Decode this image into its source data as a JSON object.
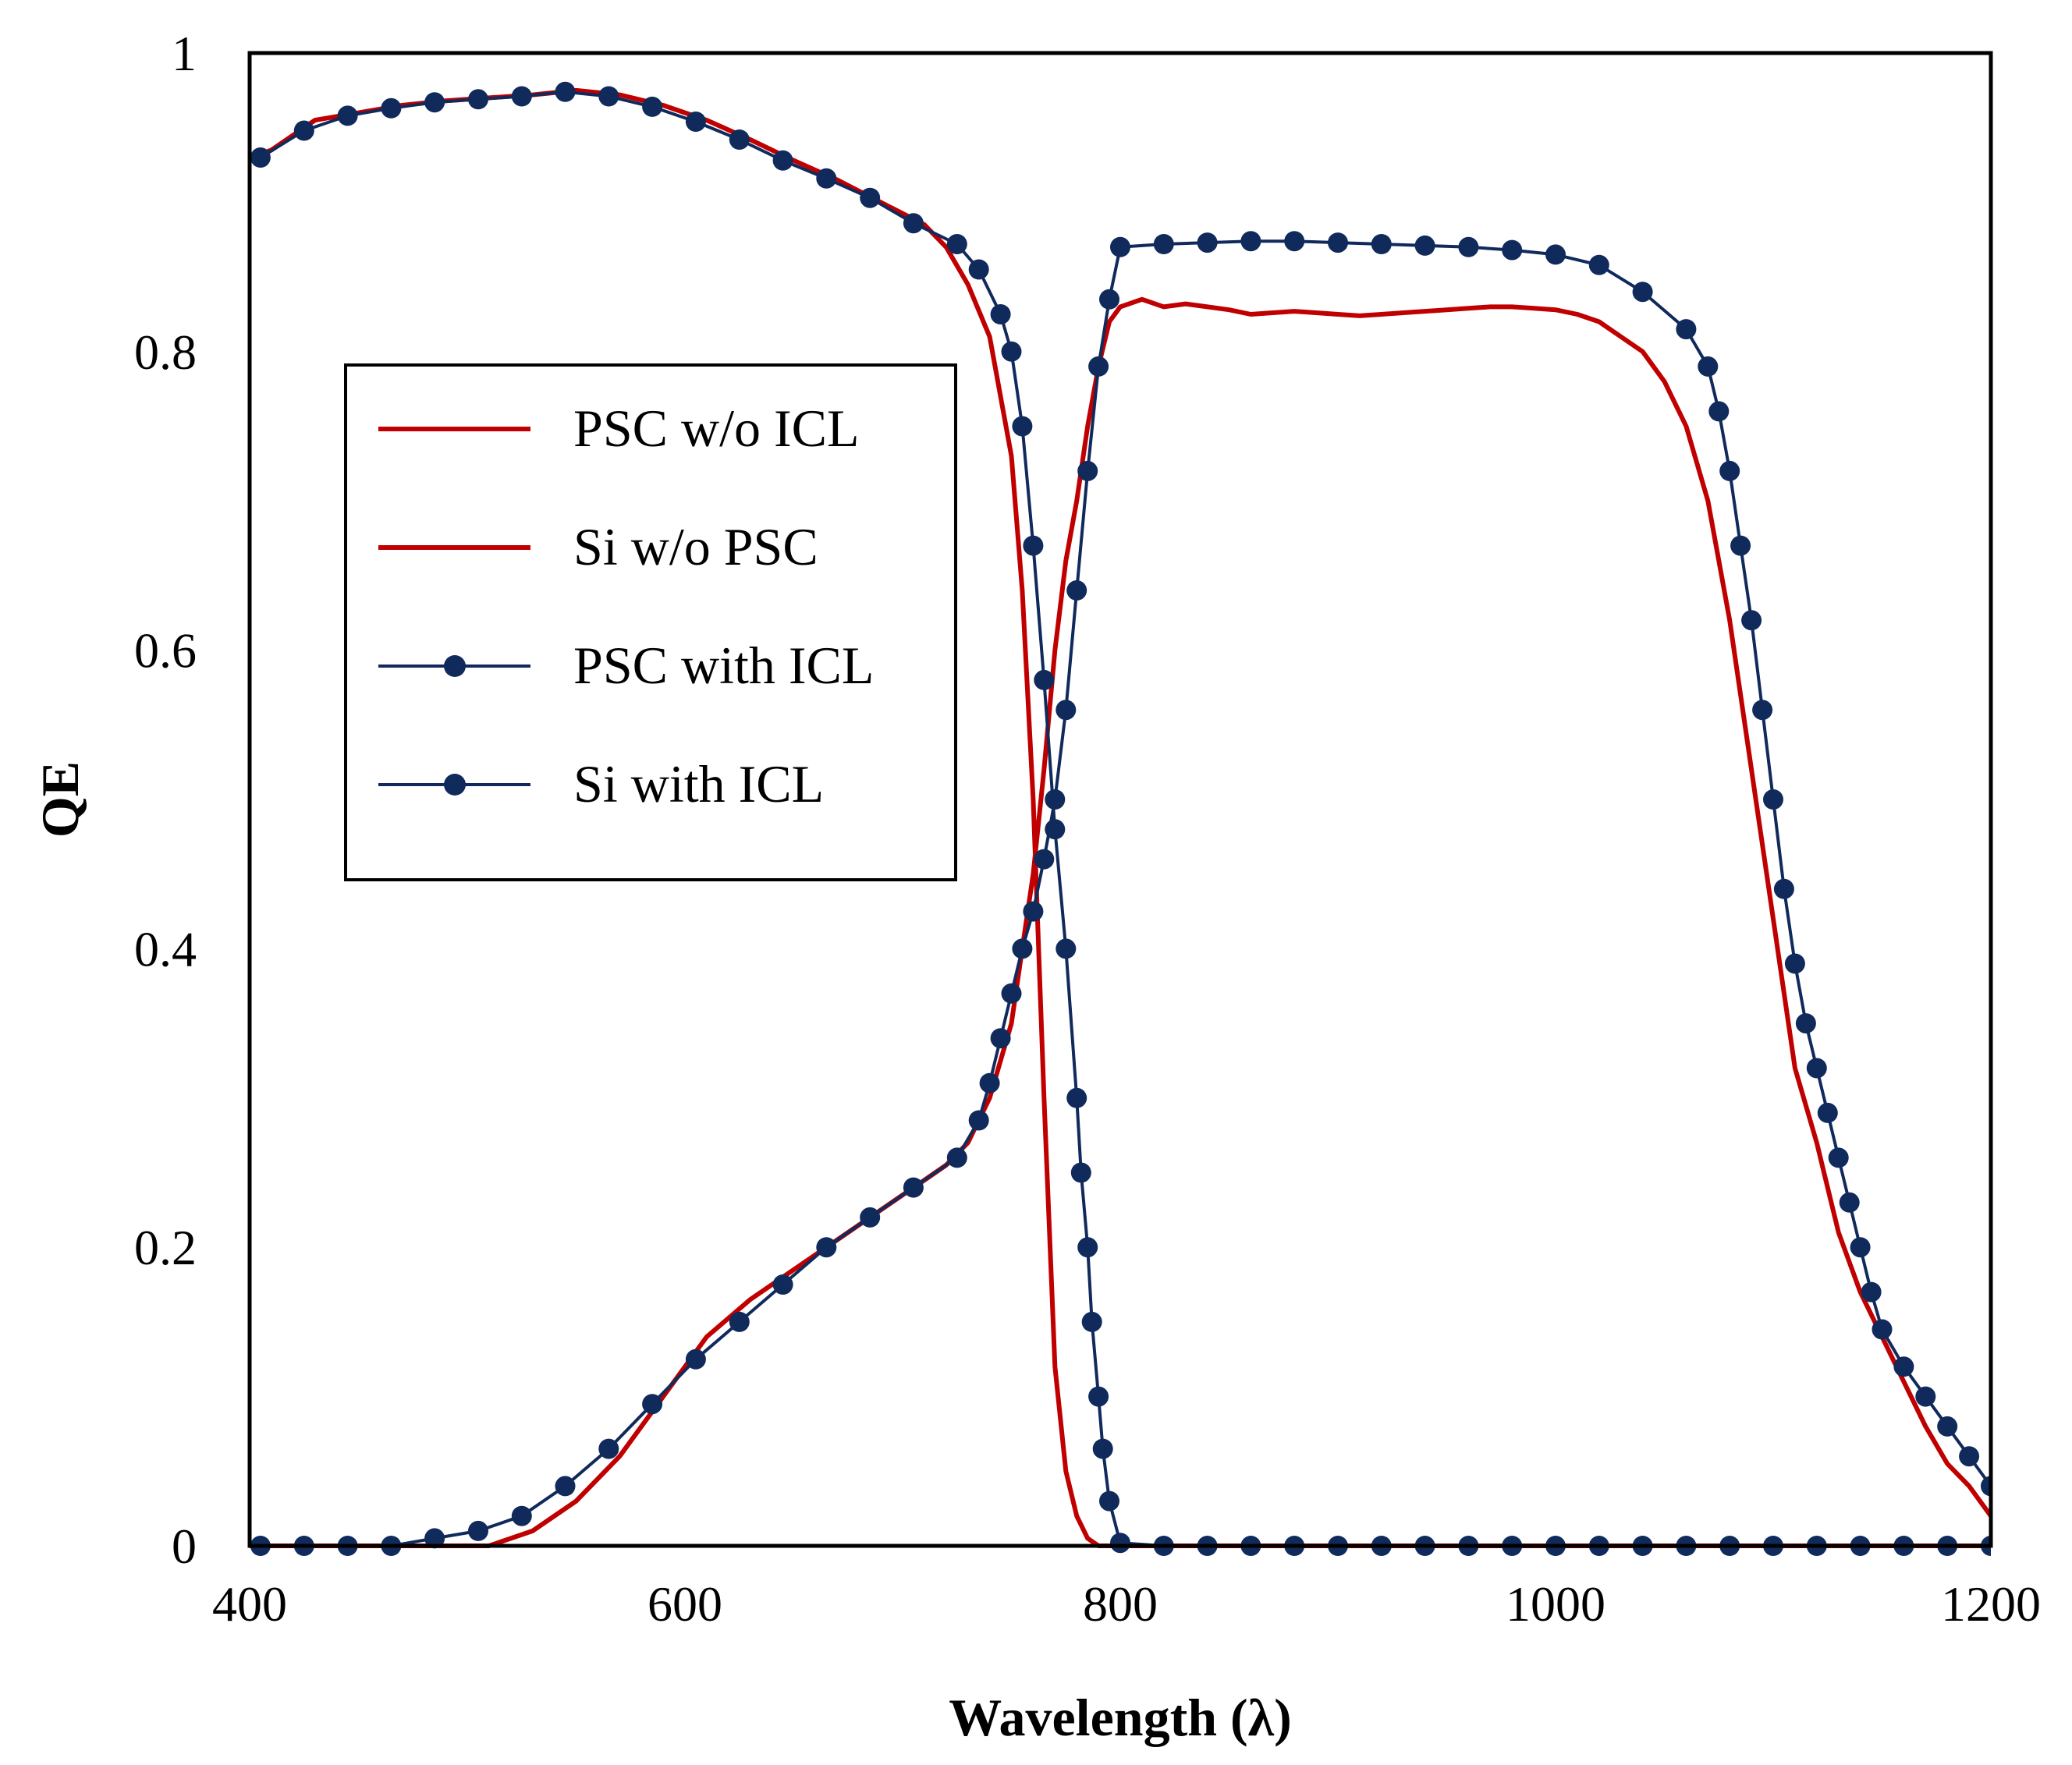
{
  "chart_data": {
    "type": "line",
    "title": "",
    "xlabel": "Wavelength (λ)",
    "ylabel": "QE",
    "xlim": [
      400,
      1200
    ],
    "ylim": [
      0,
      1
    ],
    "xticks": [
      400,
      600,
      800,
      1000,
      1200
    ],
    "xtick_labels": [
      "400",
      "600",
      "800",
      "1000",
      "1200"
    ],
    "yticks": [
      0,
      0.2,
      0.4,
      0.6,
      0.8,
      1
    ],
    "ytick_labels": [
      "0",
      "0.2",
      "0.4",
      "0.6",
      "0.8",
      "1"
    ],
    "grid": false,
    "legend_position": "center-left",
    "series": [
      {
        "name": "PSC w/o ICL",
        "color": "#c00000",
        "marker": "none",
        "x": [
          400,
          410,
          430,
          450,
          470,
          490,
          510,
          530,
          550,
          570,
          590,
          610,
          630,
          650,
          670,
          690,
          710,
          720,
          730,
          740,
          750,
          755,
          760,
          765,
          770,
          775,
          780,
          785,
          790,
          795,
          800,
          810,
          850,
          900,
          950,
          1000,
          1100,
          1200
        ],
        "y": [
          0.93,
          0.935,
          0.955,
          0.96,
          0.965,
          0.968,
          0.97,
          0.972,
          0.975,
          0.972,
          0.965,
          0.955,
          0.942,
          0.928,
          0.915,
          0.9,
          0.885,
          0.87,
          0.845,
          0.81,
          0.73,
          0.64,
          0.5,
          0.3,
          0.12,
          0.05,
          0.02,
          0.005,
          0,
          0,
          0,
          0,
          0,
          0,
          0,
          0,
          0,
          0
        ]
      },
      {
        "name": "Si w/o PSC",
        "color": "#c00000",
        "marker": "none",
        "x": [
          400,
          410,
          430,
          450,
          470,
          490,
          510,
          530,
          550,
          570,
          590,
          610,
          630,
          650,
          670,
          690,
          710,
          720,
          730,
          740,
          750,
          755,
          760,
          765,
          770,
          775,
          780,
          785,
          790,
          795,
          800,
          810,
          820,
          830,
          840,
          850,
          860,
          870,
          880,
          890,
          900,
          910,
          920,
          930,
          940,
          950,
          960,
          970,
          980,
          990,
          1000,
          1010,
          1020,
          1030,
          1040,
          1050,
          1060,
          1070,
          1080,
          1090,
          1100,
          1110,
          1120,
          1130,
          1140,
          1150,
          1160,
          1170,
          1180,
          1190,
          1200
        ],
        "y": [
          0,
          0,
          0,
          0,
          0,
          0,
          0,
          0.01,
          0.03,
          0.06,
          0.1,
          0.14,
          0.165,
          0.185,
          0.205,
          0.225,
          0.245,
          0.255,
          0.27,
          0.3,
          0.35,
          0.4,
          0.45,
          0.52,
          0.6,
          0.66,
          0.7,
          0.75,
          0.79,
          0.82,
          0.83,
          0.835,
          0.83,
          0.832,
          0.83,
          0.828,
          0.825,
          0.826,
          0.827,
          0.826,
          0.825,
          0.824,
          0.825,
          0.826,
          0.827,
          0.828,
          0.829,
          0.83,
          0.83,
          0.829,
          0.828,
          0.825,
          0.82,
          0.81,
          0.8,
          0.78,
          0.75,
          0.7,
          0.62,
          0.52,
          0.42,
          0.32,
          0.27,
          0.21,
          0.17,
          0.14,
          0.11,
          0.08,
          0.055,
          0.04,
          0.02
        ]
      },
      {
        "name": "PSC with ICL",
        "color": "#102a5c",
        "marker": "circle",
        "x": [
          405,
          425,
          445,
          465,
          485,
          505,
          525,
          545,
          565,
          585,
          605,
          625,
          645,
          665,
          685,
          705,
          725,
          735,
          745,
          750,
          755,
          760,
          765,
          770,
          775,
          780,
          782,
          785,
          787,
          790,
          792,
          795,
          800,
          820,
          840,
          860,
          880,
          900,
          920,
          940,
          960,
          980,
          1000,
          1020,
          1040,
          1060,
          1080,
          1100,
          1120,
          1140,
          1160,
          1180,
          1200
        ],
        "y": [
          0.93,
          0.948,
          0.958,
          0.963,
          0.967,
          0.969,
          0.971,
          0.974,
          0.971,
          0.964,
          0.954,
          0.942,
          0.928,
          0.916,
          0.903,
          0.886,
          0.872,
          0.855,
          0.825,
          0.8,
          0.75,
          0.67,
          0.58,
          0.48,
          0.4,
          0.3,
          0.25,
          0.2,
          0.15,
          0.1,
          0.065,
          0.03,
          0.002,
          0,
          0,
          0,
          0,
          0,
          0,
          0,
          0,
          0,
          0,
          0,
          0,
          0,
          0,
          0,
          0,
          0,
          0,
          0,
          0
        ]
      },
      {
        "name": "Si with ICL",
        "color": "#102a5c",
        "marker": "circle",
        "x": [
          405,
          425,
          445,
          465,
          485,
          505,
          525,
          545,
          565,
          585,
          605,
          625,
          645,
          665,
          685,
          705,
          725,
          735,
          740,
          745,
          750,
          755,
          760,
          765,
          770,
          775,
          780,
          785,
          790,
          795,
          800,
          820,
          840,
          860,
          880,
          900,
          920,
          940,
          960,
          980,
          1000,
          1020,
          1040,
          1060,
          1070,
          1075,
          1080,
          1085,
          1090,
          1095,
          1100,
          1105,
          1110,
          1115,
          1120,
          1125,
          1130,
          1135,
          1140,
          1145,
          1150,
          1160,
          1170,
          1180,
          1190,
          1200
        ],
        "y": [
          0,
          0,
          0,
          0,
          0.005,
          0.01,
          0.02,
          0.04,
          0.065,
          0.095,
          0.125,
          0.15,
          0.175,
          0.2,
          0.22,
          0.24,
          0.26,
          0.285,
          0.31,
          0.34,
          0.37,
          0.4,
          0.425,
          0.46,
          0.5,
          0.56,
          0.64,
          0.72,
          0.79,
          0.835,
          0.87,
          0.872,
          0.873,
          0.874,
          0.874,
          0.873,
          0.872,
          0.871,
          0.87,
          0.868,
          0.865,
          0.858,
          0.84,
          0.815,
          0.79,
          0.76,
          0.72,
          0.67,
          0.62,
          0.56,
          0.5,
          0.44,
          0.39,
          0.35,
          0.32,
          0.29,
          0.26,
          0.23,
          0.2,
          0.17,
          0.145,
          0.12,
          0.1,
          0.08,
          0.06,
          0.04
        ]
      }
    ]
  }
}
